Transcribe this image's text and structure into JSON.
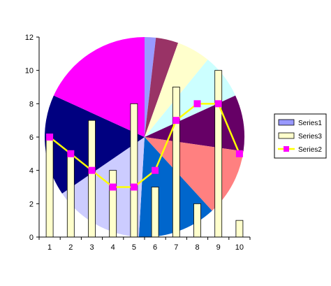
{
  "chart_data": {
    "type": "bar",
    "categories": [
      "1",
      "2",
      "3",
      "4",
      "5",
      "6",
      "7",
      "8",
      "9",
      "10"
    ],
    "x_tick_labels": [
      "1",
      "2",
      "3",
      "4",
      "5",
      "6",
      "7",
      "8",
      "9",
      "10"
    ],
    "y_tick_labels": [
      "0",
      "2",
      "4",
      "6",
      "8",
      "10",
      "12"
    ],
    "ylim": [
      0,
      12
    ],
    "grid": false,
    "legend_position": "right",
    "pie_series": {
      "name": "Series1",
      "values": [
        1,
        2,
        3,
        4,
        5,
        6,
        7,
        8,
        9,
        10
      ],
      "slice_colors": [
        "#9999FF",
        "#993366",
        "#FFFFCC",
        "#CCFFFF",
        "#660066",
        "#FF8080",
        "#0066CC",
        "#CCCCFF",
        "#000080",
        "#FF00FF"
      ]
    },
    "series": [
      {
        "name": "Series3",
        "type": "bar",
        "values": [
          6,
          5,
          7,
          4,
          8,
          3,
          9,
          2,
          10,
          1
        ],
        "color": "#FFFFCC"
      },
      {
        "name": "Series2",
        "type": "line",
        "values": [
          6,
          5,
          4,
          3,
          3,
          4,
          7,
          8,
          8,
          5
        ],
        "color": "#FFFF00",
        "marker_color": "#FF00FF"
      }
    ],
    "legend": [
      {
        "label": "Series1",
        "swatch": "#9999FF"
      },
      {
        "label": "Series3",
        "swatch": "#FFFFCC"
      },
      {
        "label": "Series2",
        "swatch": "#FFFF00"
      }
    ]
  }
}
